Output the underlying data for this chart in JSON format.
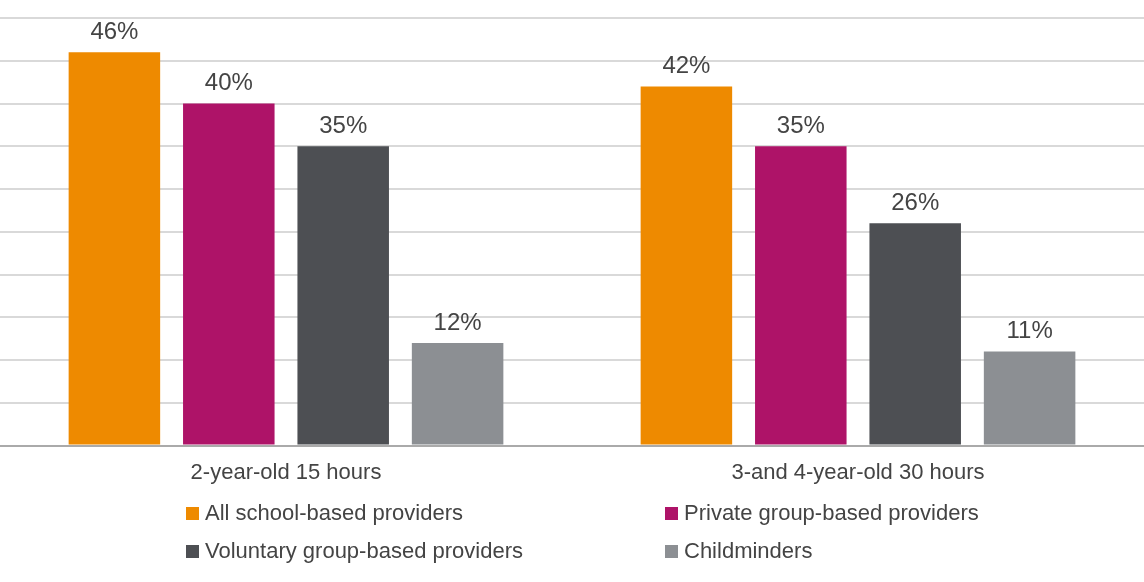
{
  "chart_data": {
    "type": "bar",
    "categories": [
      "2-year-old 15 hours",
      "3-and 4-year-old 30 hours"
    ],
    "series": [
      {
        "name": "All school-based providers",
        "color": "#ee8a00",
        "values": [
          46,
          42
        ],
        "value_labels": [
          "46%",
          "42%"
        ]
      },
      {
        "name": "Private group-based providers",
        "color": "#ae1368",
        "values": [
          40,
          35
        ],
        "value_labels": [
          "40%",
          "35%"
        ]
      },
      {
        "name": "Voluntary group-based providers",
        "color": "#4d4f53",
        "values": [
          35,
          26
        ],
        "value_labels": [
          "35%",
          "26%"
        ]
      },
      {
        "name": "Childminders",
        "color": "#8c8f93",
        "values": [
          12,
          11
        ],
        "value_labels": [
          "12%",
          "11%"
        ]
      }
    ],
    "tick_labels": "x",
    "grid": "y",
    "legend": "bottom"
  }
}
